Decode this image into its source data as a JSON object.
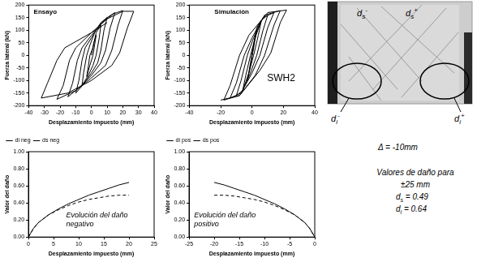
{
  "chart_data": [
    {
      "type": "line",
      "annotations": [
        "Ensayo"
      ],
      "x_label": "Desplazamiento impuesto (mm)",
      "y_label": "Fuerza lateral (kN)",
      "xlim": [
        -40,
        40
      ],
      "xticks": [
        -40,
        -30,
        -20,
        -10,
        0,
        10,
        20,
        30,
        40
      ],
      "ylim": [
        -200,
        200
      ],
      "yticks": [
        -200,
        -150,
        -100,
        -50,
        0,
        50,
        100,
        150,
        200
      ],
      "grid": false,
      "series": [
        {
          "color": "#000000",
          "marker": "none",
          "line_style": "solid",
          "values": [
            [
              0,
              0
            ],
            [
              1.5,
              50
            ],
            [
              3,
              80
            ],
            [
              2,
              40
            ],
            [
              1,
              0
            ],
            [
              -1,
              -40
            ],
            [
              -3,
              -85
            ],
            [
              -2,
              -45
            ],
            [
              -1,
              0
            ],
            [
              1,
              30
            ],
            [
              3,
              90
            ],
            [
              6,
              120
            ],
            [
              5,
              70
            ],
            [
              3,
              0
            ],
            [
              1,
              -40
            ],
            [
              -2,
              -80
            ],
            [
              -6,
              -120
            ],
            [
              -5,
              -70
            ],
            [
              -3,
              0
            ],
            [
              -1,
              40
            ],
            [
              2,
              90
            ],
            [
              6,
              130
            ],
            [
              10,
              150
            ],
            [
              8,
              100
            ],
            [
              6,
              20
            ],
            [
              4,
              -30
            ],
            [
              0,
              -70
            ],
            [
              -5,
              -115
            ],
            [
              -10,
              -150
            ],
            [
              -8,
              -100
            ],
            [
              -6,
              -20
            ],
            [
              -4,
              30
            ],
            [
              0,
              70
            ],
            [
              5,
              120
            ],
            [
              10,
              150
            ],
            [
              15,
              170
            ],
            [
              12,
              110
            ],
            [
              9,
              20
            ],
            [
              6,
              -30
            ],
            [
              0,
              -80
            ],
            [
              -8,
              -130
            ],
            [
              -15,
              -165
            ],
            [
              -12,
              -110
            ],
            [
              -9,
              -20
            ],
            [
              -6,
              30
            ],
            [
              0,
              80
            ],
            [
              7,
              130
            ],
            [
              14,
              165
            ],
            [
              20,
              178
            ],
            [
              17,
              120
            ],
            [
              13,
              20
            ],
            [
              9,
              -40
            ],
            [
              0,
              -90
            ],
            [
              -10,
              -140
            ],
            [
              -22,
              -175
            ],
            [
              -18,
              -120
            ],
            [
              -14,
              -20
            ],
            [
              -10,
              30
            ],
            [
              0,
              90
            ],
            [
              10,
              145
            ],
            [
              20,
              175
            ],
            [
              27,
              175
            ],
            [
              23,
              110
            ],
            [
              18,
              10
            ],
            [
              13,
              -40
            ],
            [
              0,
              -100
            ],
            [
              -15,
              -150
            ],
            [
              -32,
              -170
            ],
            [
              -28,
              -110
            ],
            [
              -22,
              -20
            ],
            [
              -17,
              30
            ],
            [
              0,
              90
            ],
            [
              10,
              130
            ]
          ]
        }
      ]
    },
    {
      "type": "line",
      "annotations": [
        "Simulación",
        "SWH2"
      ],
      "x_label": "Desplazamiento impuesto (mm)",
      "y_label": "Fuerza lateral (kN)",
      "xlim": [
        -40,
        40
      ],
      "xticks": [
        -40,
        -20,
        0,
        20,
        40
      ],
      "ylim": [
        -200,
        200
      ],
      "yticks": [
        -200,
        -150,
        -100,
        -50,
        0,
        50,
        100,
        150,
        200
      ],
      "grid": false,
      "series": [
        {
          "color": "#000000",
          "marker": "none",
          "line_style": "solid",
          "values": [
            [
              0,
              0
            ],
            [
              2,
              80
            ],
            [
              3,
              100
            ],
            [
              1,
              30
            ],
            [
              -1,
              -40
            ],
            [
              -3,
              -100
            ],
            [
              -1,
              -30
            ],
            [
              1,
              40
            ],
            [
              3,
              110
            ],
            [
              6,
              140
            ],
            [
              4,
              80
            ],
            [
              1,
              0
            ],
            [
              -2,
              -70
            ],
            [
              -6,
              -140
            ],
            [
              -4,
              -80
            ],
            [
              -1,
              0
            ],
            [
              2,
              70
            ],
            [
              6,
              140
            ],
            [
              10,
              160
            ],
            [
              7,
              100
            ],
            [
              3,
              0
            ],
            [
              -1,
              -70
            ],
            [
              -6,
              -140
            ],
            [
              -10,
              -160
            ],
            [
              -7,
              -100
            ],
            [
              -3,
              0
            ],
            [
              1,
              70
            ],
            [
              7,
              150
            ],
            [
              14,
              170
            ],
            [
              10,
              110
            ],
            [
              5,
              0
            ],
            [
              0,
              -70
            ],
            [
              -7,
              -150
            ],
            [
              -14,
              -170
            ],
            [
              -10,
              -110
            ],
            [
              -5,
              0
            ],
            [
              0,
              70
            ],
            [
              8,
              160
            ],
            [
              18,
              178
            ],
            [
              14,
              120
            ],
            [
              8,
              0
            ],
            [
              2,
              -80
            ],
            [
              -8,
              -160
            ],
            [
              -18,
              -178
            ],
            [
              -14,
              -120
            ],
            [
              -8,
              0
            ],
            [
              -2,
              80
            ],
            [
              10,
              170
            ],
            [
              22,
              180
            ],
            [
              18,
              130
            ],
            [
              12,
              10
            ],
            [
              5,
              -60
            ],
            [
              -8,
              -160
            ],
            [
              -20,
              -178
            ]
          ]
        }
      ]
    },
    {
      "type": "line",
      "annotations": [
        "Evolución del daño negativo"
      ],
      "x_label": "Desplazamiento impuesto (mm)",
      "y_label": "Valor del daño",
      "xlim": [
        0,
        25
      ],
      "xticks": [
        0,
        5,
        10,
        15,
        20,
        25
      ],
      "ylim": [
        0,
        1
      ],
      "yticks": [
        {
          "value": 0,
          "label": "0.00"
        },
        {
          "value": 0.2,
          "label": "0.20"
        },
        {
          "value": 0.4,
          "label": "0.40"
        },
        {
          "value": 0.6,
          "label": "0.60"
        },
        {
          "value": 0.8,
          "label": "0.80"
        },
        {
          "value": 1,
          "label": "1.00"
        }
      ],
      "grid": false,
      "legend": "top left",
      "x": [
        0,
        1,
        2,
        4,
        6,
        8,
        10,
        12,
        14,
        16,
        18,
        20
      ],
      "series": [
        {
          "name": "di neg",
          "color": "#000000",
          "marker": "none",
          "line_style": "solid",
          "values": [
            0,
            0.1,
            0.17,
            0.26,
            0.33,
            0.39,
            0.44,
            0.49,
            0.53,
            0.57,
            0.61,
            0.64
          ]
        },
        {
          "name": "ds neg",
          "color": "#000000",
          "marker": "none",
          "line_style": "dashed",
          "values": [
            0,
            0.1,
            0.17,
            0.26,
            0.32,
            0.37,
            0.41,
            0.44,
            0.46,
            0.48,
            0.49,
            0.49
          ]
        }
      ]
    },
    {
      "type": "line",
      "annotations": [
        "Evolución del daño positivo"
      ],
      "x_label": "Desplazamiento impuesto (mm)",
      "y_label": "Valor del daño",
      "xlim": [
        -25,
        0
      ],
      "xticks": [
        -25,
        -20,
        -15,
        -10,
        -5,
        0
      ],
      "ylim": [
        0,
        1
      ],
      "yticks": [
        {
          "value": 0,
          "label": "0.00"
        },
        {
          "value": 0.2,
          "label": "0.20"
        },
        {
          "value": 0.4,
          "label": "0.40"
        },
        {
          "value": 0.6,
          "label": "0.60"
        },
        {
          "value": 0.8,
          "label": "0.80"
        },
        {
          "value": 1,
          "label": "1.00"
        }
      ],
      "grid": false,
      "legend": "top left",
      "x": [
        -20,
        -18,
        -16,
        -14,
        -12,
        -10,
        -8,
        -6,
        -4,
        -2,
        -1,
        0
      ],
      "series": [
        {
          "name": "di pos",
          "color": "#000000",
          "marker": "none",
          "line_style": "solid",
          "values": [
            0.64,
            0.61,
            0.57,
            0.53,
            0.49,
            0.44,
            0.39,
            0.33,
            0.26,
            0.17,
            0.1,
            0
          ]
        },
        {
          "name": "ds pos",
          "color": "#000000",
          "marker": "none",
          "line_style": "dashed",
          "values": [
            0.49,
            0.49,
            0.48,
            0.46,
            0.44,
            0.41,
            0.37,
            0.32,
            0.26,
            0.17,
            0.1,
            0
          ]
        }
      ]
    }
  ],
  "photo": {
    "labels": [
      {
        "base": "d",
        "sub": "s",
        "sup": "-"
      },
      {
        "base": "d",
        "sub": "s",
        "sup": "+"
      },
      {
        "base": "d",
        "sub": "i",
        "sup": "-"
      },
      {
        "base": "d",
        "sub": "i",
        "sup": "+"
      }
    ],
    "caption": "Δ = -10mm"
  },
  "notes": {
    "lines": [
      "Valores de daño para",
      "±25 mm"
    ],
    "values": [
      {
        "base": "d",
        "sub": "s",
        "rest": " = 0.49"
      },
      {
        "base": "d",
        "sub": "i",
        "rest": " = 0.64"
      }
    ]
  }
}
